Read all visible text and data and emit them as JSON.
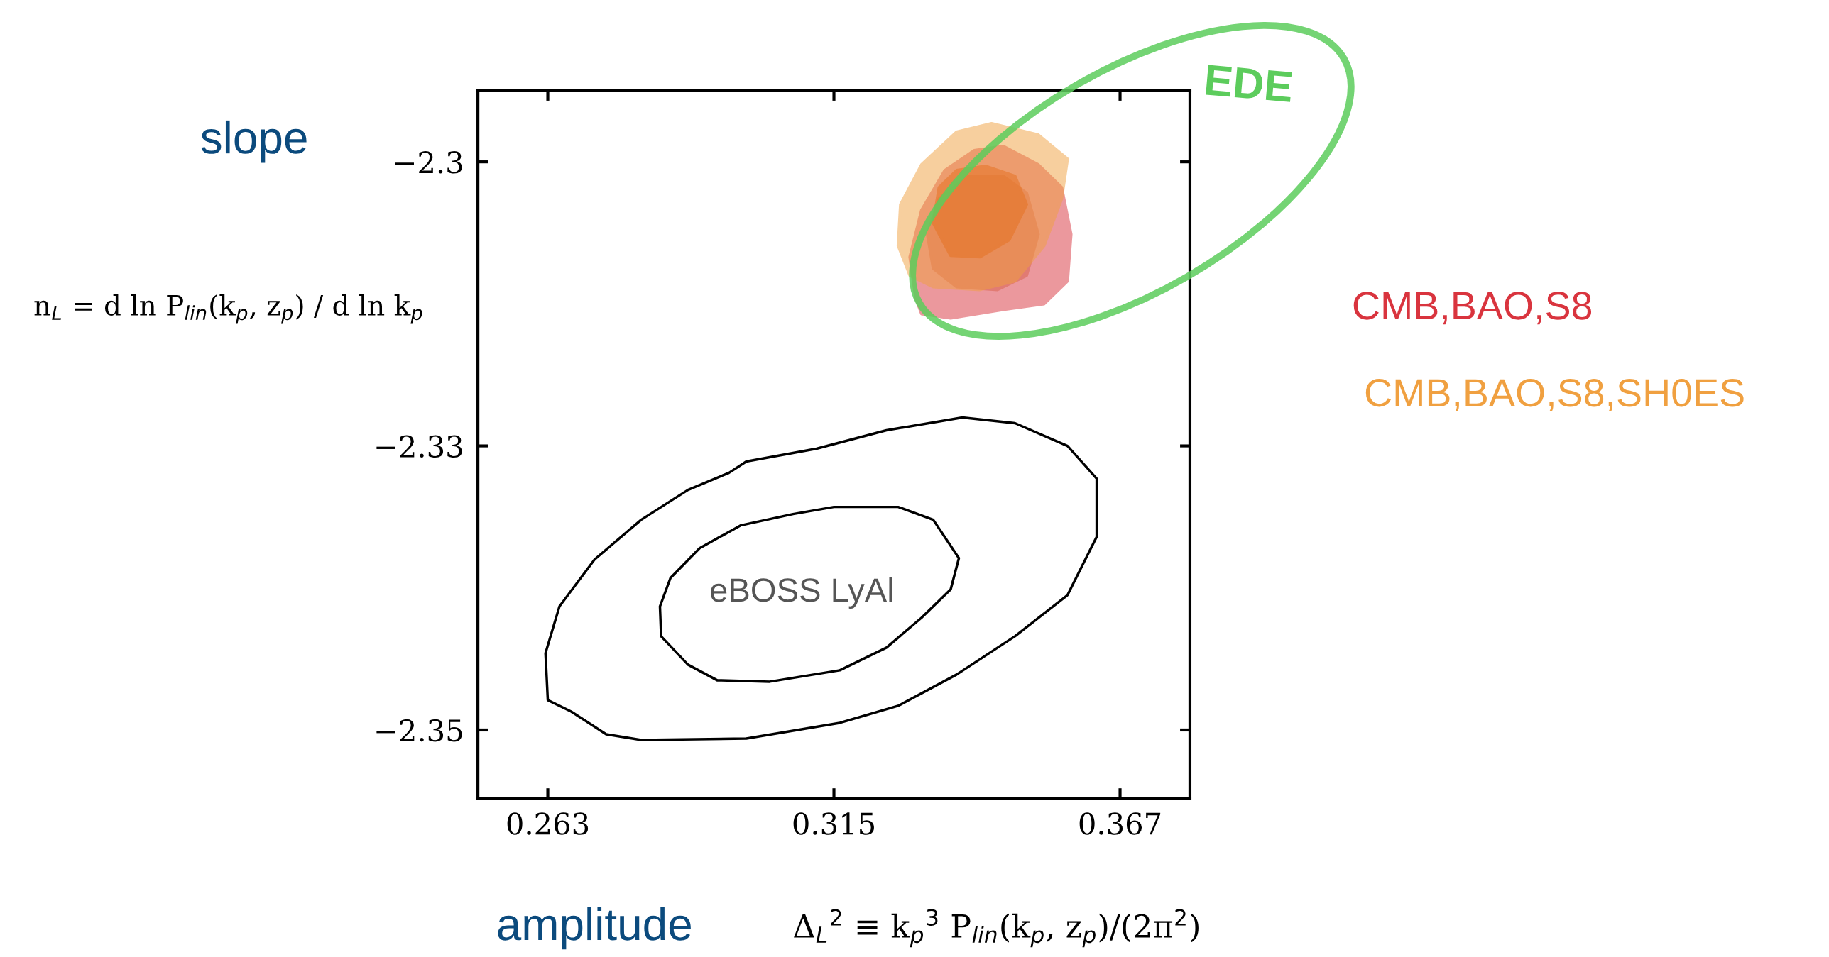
{
  "chart_data": {
    "type": "area",
    "xlabel": "amplitude",
    "ylabel": "slope",
    "xlim": [
      0.2503,
      0.3797
    ],
    "ylim": [
      -2.3548,
      -2.305
    ],
    "xticks": [
      0.263,
      0.315,
      0.367
    ],
    "yticks": [
      {
        "value": -2.31,
        "label": "−2.3"
      },
      {
        "value": -2.33,
        "label": "−2.33"
      },
      {
        "value": -2.35,
        "label": "−2.35"
      }
    ],
    "grid": false,
    "legend": "right",
    "series": [
      {
        "color": "#000000",
        "x": [
          0.263,
          0.26258,
          0.26512,
          0.27149,
          0.27998,
          0.28847,
          0.2959,
          0.29908,
          0.31182,
          0.32455,
          0.33835,
          0.3479,
          0.35745,
          0.36275,
          0.36275,
          0.35745,
          0.3479,
          0.33729,
          0.32667,
          0.31606,
          0.29908,
          0.27998,
          0.27361,
          0.26725
        ],
        "values": [
          -2.3479,
          -2.3446,
          -2.3413,
          -2.338,
          -2.3352,
          -2.3331,
          -2.3319,
          -2.3311,
          -2.3302,
          -2.3289,
          -2.328,
          -2.3284,
          -2.33,
          -2.3323,
          -2.3364,
          -2.3405,
          -2.3434,
          -2.3461,
          -2.3483,
          -2.3495,
          -2.3506,
          -2.3507,
          -2.3503,
          -2.3487
        ]
      },
      {
        "color": "#000000",
        "x": [
          0.28359,
          0.28338,
          0.28529,
          0.29059,
          0.29802,
          0.30757,
          0.315,
          0.32667,
          0.33304,
          0.33771,
          0.33622,
          0.33092,
          0.32455,
          0.31606,
          0.30333,
          0.29378,
          0.28847
        ],
        "values": [
          -2.3434,
          -2.3413,
          -2.3393,
          -2.3372,
          -2.3356,
          -2.3348,
          -2.3343,
          -2.3343,
          -2.3352,
          -2.3379,
          -2.3401,
          -2.3421,
          -2.3442,
          -2.3458,
          -2.3466,
          -2.3465,
          -2.3454
        ]
      },
      {
        "name": "CMB,BAO,S8",
        "color": "#d9343e",
        "x": [
          0.32986,
          0.3288,
          0.33092,
          0.33516,
          0.34047,
          0.34577,
          0.35214,
          0.35639,
          0.35809,
          0.35745,
          0.3532,
          0.34577,
          0.33622,
          0.33092
        ],
        "values": [
          -2.3196,
          -2.3167,
          -2.3134,
          -2.3106,
          -2.3092,
          -2.3089,
          -2.3102,
          -2.3118,
          -2.3151,
          -2.3184,
          -2.32,
          -2.3204,
          -2.321,
          -2.3207
        ]
      },
      {
        "color": "#d9604a",
        "x": [
          0.33304,
          0.33198,
          0.3341,
          0.33941,
          0.34577,
          0.35002,
          0.35214,
          0.35002,
          0.34471,
          0.33729
        ],
        "values": [
          -2.3175,
          -2.3151,
          -2.3126,
          -2.311,
          -2.311,
          -2.3122,
          -2.3151,
          -2.318,
          -2.319,
          -2.3188
        ]
      },
      {
        "name": "CMB,BAO,S8,SH0ES",
        "color": "#f0a040",
        "x": [
          0.32667,
          0.3271,
          0.33092,
          0.33729,
          0.34365,
          0.35214,
          0.35745,
          0.35639,
          0.3532,
          0.3479,
          0.34153,
          0.33304,
          0.3288
        ],
        "values": [
          -2.3159,
          -2.313,
          -2.3102,
          -2.3079,
          -2.3073,
          -2.3081,
          -2.3098,
          -2.3126,
          -2.3159,
          -2.3184,
          -2.319,
          -2.3188,
          -2.318
        ]
      },
      {
        "color": "#e6701e",
        "x": [
          0.33304,
          0.3341,
          0.33729,
          0.34259,
          0.3479,
          0.35002,
          0.34684,
          0.34153,
          0.33622
        ],
        "values": [
          -2.3143,
          -2.3118,
          -2.3106,
          -2.3103,
          -2.311,
          -2.313,
          -2.3155,
          -2.3167,
          -2.3166
        ]
      }
    ],
    "annotations": [
      "n$_{L}$ = d ln P$_{lin}$(k$_{p}$, z$_{p}$) / d ln k$_{p}$",
      "Δ$_{L}$$^{2}$ ≡ k$_{p}$$^{3}$ P$_{lin}$(k$_{p}$, z$_{p}$)/(2π$^{2}$)",
      "eBOSS LyAl",
      "EDE"
    ]
  }
}
